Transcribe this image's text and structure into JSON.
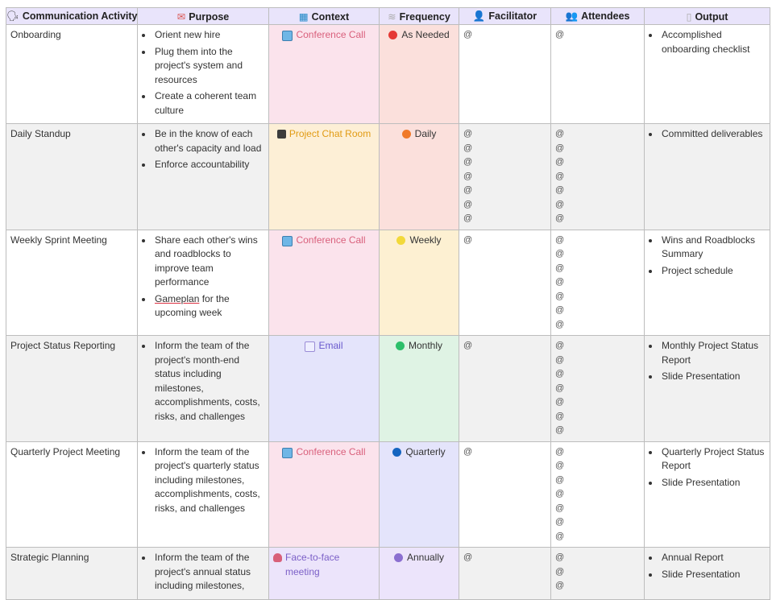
{
  "headers": [
    {
      "icon": "speech-head-icon",
      "glyph": "🗣",
      "glyph_color": "#333333",
      "label": "Communication Activity"
    },
    {
      "icon": "envelope-icon",
      "glyph": "✉",
      "glyph_color": "#d9534f",
      "label": "Purpose"
    },
    {
      "icon": "grid-icon",
      "glyph": "▦",
      "glyph_color": "#1e88c8",
      "label": "Context"
    },
    {
      "icon": "waves-icon",
      "glyph": "≋",
      "glyph_color": "#aaaaaa",
      "label": "Frequency"
    },
    {
      "icon": "person-icon",
      "glyph": "👤",
      "glyph_color": "#444444",
      "label": "Facilitator"
    },
    {
      "icon": "people-icon",
      "glyph": "👥",
      "glyph_color": "#444444",
      "label": "Attendees"
    },
    {
      "icon": "document-icon",
      "glyph": "▯",
      "glyph_color": "#aaaaaa",
      "label": "Output"
    }
  ],
  "rows": [
    {
      "activity": "Onboarding",
      "purpose": [
        "Orient new hire",
        "Plug them into the project's system and resources",
        "Create a coherent team culture"
      ],
      "context": {
        "label": "Conference Call",
        "icon": "monitor-icon",
        "bg": "#fbe3ec",
        "color": "#d9607c"
      },
      "frequency": {
        "label": "As Needed",
        "dot": "#e53935",
        "bg": "#fbe0dc"
      },
      "facilitator_mentions": [
        "@"
      ],
      "attendee_mentions": [
        "@"
      ],
      "output": [
        "Accomplished onboarding checklist"
      ]
    },
    {
      "activity": "Daily Standup",
      "purpose": [
        "Be in the know of each other's capacity and load",
        "Enforce accountability"
      ],
      "context": {
        "label": "Project Chat Room",
        "icon": "notebook-icon",
        "bg": "#fdefd6",
        "color": "#e19b14"
      },
      "frequency": {
        "label": "Daily",
        "dot": "#f07a2a",
        "bg": "#fbe0dc"
      },
      "facilitator_mentions": [
        "@",
        "@",
        "@",
        "@",
        "@",
        "@",
        "@"
      ],
      "attendee_mentions": [
        "@",
        "@",
        "@",
        "@",
        "@",
        "@",
        "@"
      ],
      "output": [
        "Committed deliverables"
      ]
    },
    {
      "activity": "Weekly Sprint Meeting",
      "purpose": [
        "Share each other's wins and roadblocks to improve team performance",
        "Gameplan for the upcoming week"
      ],
      "context": {
        "label": "Conference Call",
        "icon": "monitor-icon",
        "bg": "#fbe3ec",
        "color": "#d9607c"
      },
      "frequency": {
        "label": "Weekly",
        "dot": "#f2d93a",
        "bg": "#fdf0d2"
      },
      "facilitator_mentions": [
        "@"
      ],
      "attendee_mentions": [
        "@",
        "@",
        "@",
        "@",
        "@",
        "@",
        "@"
      ],
      "output": [
        "Wins and Roadblocks Summary",
        "Project schedule"
      ]
    },
    {
      "activity": "Project Status Reporting",
      "purpose": [
        "Inform the team of the project's month-end status including milestones, accomplishments, costs, risks, and challenges"
      ],
      "context": {
        "label": "Email",
        "icon": "mail-icon",
        "bg": "#e4e4fb",
        "color": "#6a5acd"
      },
      "frequency": {
        "label": "Monthly",
        "dot": "#2dbf6a",
        "bg": "#dff3e4"
      },
      "facilitator_mentions": [
        "@"
      ],
      "attendee_mentions": [
        "@",
        "@",
        "@",
        "@",
        "@",
        "@",
        "@"
      ],
      "output": [
        "Monthly Project Status Report",
        "Slide Presentation"
      ]
    },
    {
      "activity": "Quarterly Project Meeting",
      "purpose": [
        "Inform the team of the project's quarterly status including milestones, accomplishments, costs, risks, and challenges"
      ],
      "context": {
        "label": "Conference Call",
        "icon": "monitor-icon",
        "bg": "#fbe3ec",
        "color": "#d9607c"
      },
      "frequency": {
        "label": "Quarterly",
        "dot": "#1565c0",
        "bg": "#e4e4fb"
      },
      "facilitator_mentions": [
        "@"
      ],
      "attendee_mentions": [
        "@",
        "@",
        "@",
        "@",
        "@",
        "@",
        "@"
      ],
      "output": [
        "Quarterly Project Status Report",
        "Slide Presentation"
      ]
    },
    {
      "activity": "Strategic Planning",
      "purpose": [
        "Inform the team of the project's annual status including milestones,"
      ],
      "context": {
        "label": "Face-to-face meeting",
        "icon": "heart-icon",
        "bg": "#ece4fb",
        "color": "#7b5fc7"
      },
      "frequency": {
        "label": "Annually",
        "dot": "#8b6fd0",
        "bg": "#ece4fb"
      },
      "facilitator_mentions": [
        "@"
      ],
      "attendee_mentions": [
        "@",
        "@",
        "@"
      ],
      "output": [
        "Annual Report",
        "Slide Presentation"
      ]
    }
  ],
  "underlined_words": {
    "row_index": 2,
    "item_index": 1,
    "word": "Gameplan"
  }
}
